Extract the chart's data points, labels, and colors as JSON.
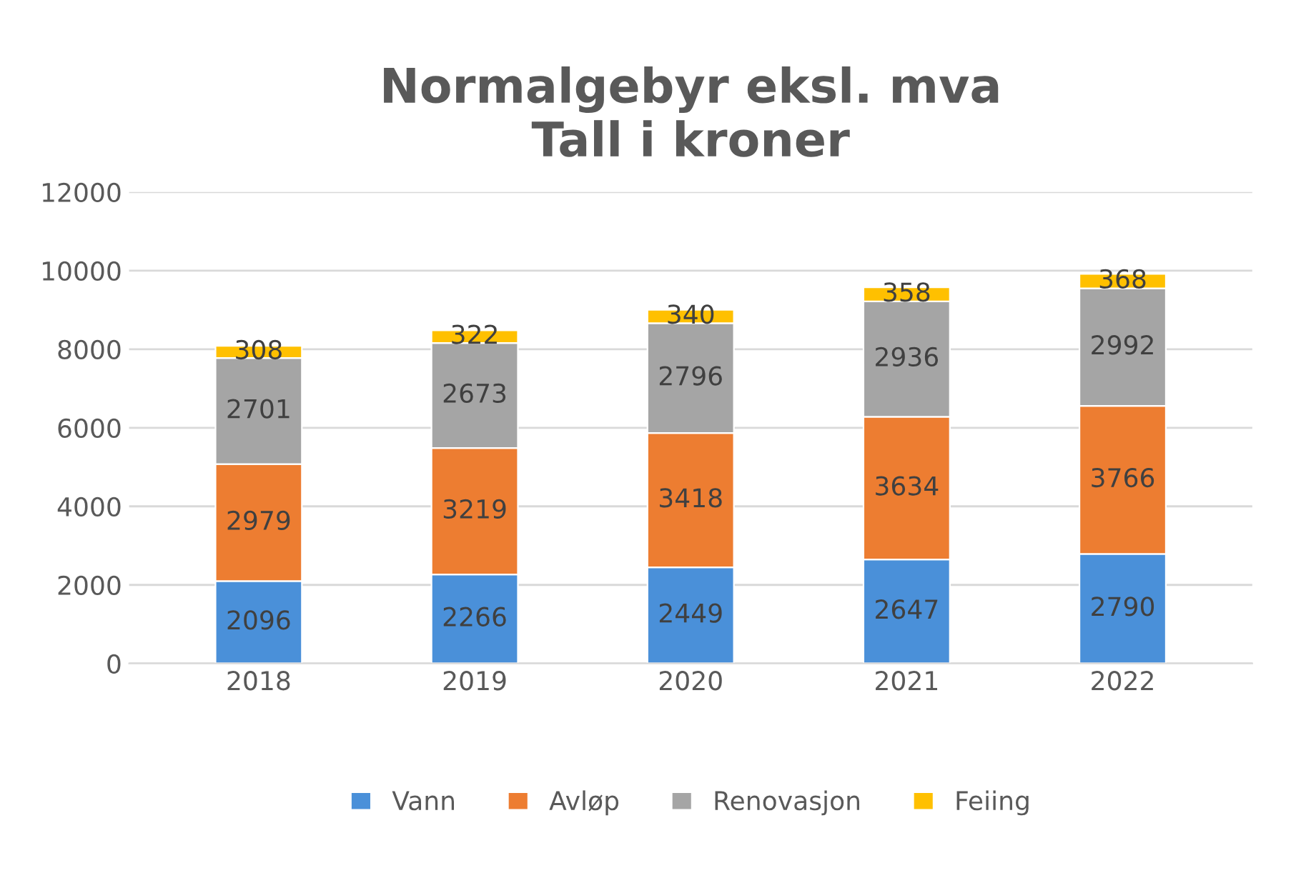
{
  "chart_data": {
    "type": "bar",
    "title": "Normalgebyr eksl. mva\nTall i kroner",
    "categories": [
      "2018",
      "2019",
      "2020",
      "2021",
      "2022"
    ],
    "stacked": true,
    "series": [
      {
        "name": "Vann",
        "color": "#4a90d9",
        "values": [
          2096,
          2266,
          2449,
          2647,
          2790
        ]
      },
      {
        "name": "Avløp",
        "color": "#ed7d31",
        "values": [
          2979,
          3219,
          3418,
          3634,
          3766
        ]
      },
      {
        "name": "Renovasjon",
        "color": "#a5a5a5",
        "values": [
          2701,
          2673,
          2796,
          2936,
          2992
        ]
      },
      {
        "name": "Feiing",
        "color": "#ffc000",
        "values": [
          308,
          322,
          340,
          358,
          368
        ]
      }
    ],
    "ylim": [
      0,
      12000
    ],
    "yticks": [
      0,
      2000,
      4000,
      6000,
      8000,
      10000,
      12000
    ],
    "grid": "y",
    "legend": "bottom",
    "data_labels": true
  }
}
